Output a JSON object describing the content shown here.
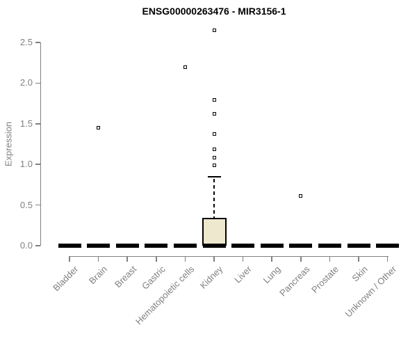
{
  "chart_data": {
    "type": "boxplot",
    "title": "ENSG00000263476 - MIR3156-1",
    "xlabel": "",
    "ylabel": "Expression",
    "ylim": [
      0,
      2.5
    ],
    "yticks": [
      "0.0",
      "0.5",
      "1.0",
      "1.5",
      "2.0",
      "2.5"
    ],
    "grid": false,
    "legend": "none",
    "categories": [
      "Bladder",
      "Brain",
      "Breast",
      "Gastric",
      "Hematopoietic cells",
      "Kidney",
      "Liver",
      "Lung",
      "Pancreas",
      "Prostate",
      "Skin",
      "Unknown / Other"
    ],
    "boxes": [
      {
        "category": "Bladder",
        "q1": 0,
        "median": 0,
        "q3": 0,
        "whisker_low": 0,
        "whisker_high": 0,
        "outliers": []
      },
      {
        "category": "Brain",
        "q1": 0,
        "median": 0,
        "q3": 0,
        "whisker_low": 0,
        "whisker_high": 0,
        "outliers": [
          1.45
        ]
      },
      {
        "category": "Breast",
        "q1": 0,
        "median": 0,
        "q3": 0,
        "whisker_low": 0,
        "whisker_high": 0,
        "outliers": []
      },
      {
        "category": "Gastric",
        "q1": 0,
        "median": 0,
        "q3": 0,
        "whisker_low": 0,
        "whisker_high": 0,
        "outliers": []
      },
      {
        "category": "Hematopoietic cells",
        "q1": 0,
        "median": 0,
        "q3": 0,
        "whisker_low": 0,
        "whisker_high": 0,
        "outliers": [
          2.2
        ]
      },
      {
        "category": "Kidney",
        "q1": 0,
        "median": 0,
        "q3": 0.34,
        "whisker_low": 0,
        "whisker_high": 0.85,
        "outliers": [
          0.99,
          1.08,
          1.19,
          1.37,
          1.62,
          1.79,
          2.65
        ]
      },
      {
        "category": "Liver",
        "q1": 0,
        "median": 0,
        "q3": 0,
        "whisker_low": 0,
        "whisker_high": 0,
        "outliers": []
      },
      {
        "category": "Lung",
        "q1": 0,
        "median": 0,
        "q3": 0,
        "whisker_low": 0,
        "whisker_high": 0,
        "outliers": []
      },
      {
        "category": "Pancreas",
        "q1": 0,
        "median": 0,
        "q3": 0,
        "whisker_low": 0,
        "whisker_high": 0,
        "outliers": [
          0.61
        ]
      },
      {
        "category": "Prostate",
        "q1": 0,
        "median": 0,
        "q3": 0,
        "whisker_low": 0,
        "whisker_high": 0,
        "outliers": []
      },
      {
        "category": "Skin",
        "q1": 0,
        "median": 0,
        "q3": 0,
        "whisker_low": 0,
        "whisker_high": 0,
        "outliers": []
      },
      {
        "category": "Unknown / Other",
        "q1": 0,
        "median": 0,
        "q3": 0,
        "whisker_low": 0,
        "whisker_high": 0,
        "outliers": []
      }
    ],
    "colors": {
      "box_fill": "#EDE8CE",
      "box_border": "#000000",
      "median": "#000000",
      "outlier": "#000000",
      "axis": "#808080",
      "tick_label": "#808080",
      "title": "#000000",
      "background": "#ffffff"
    }
  }
}
